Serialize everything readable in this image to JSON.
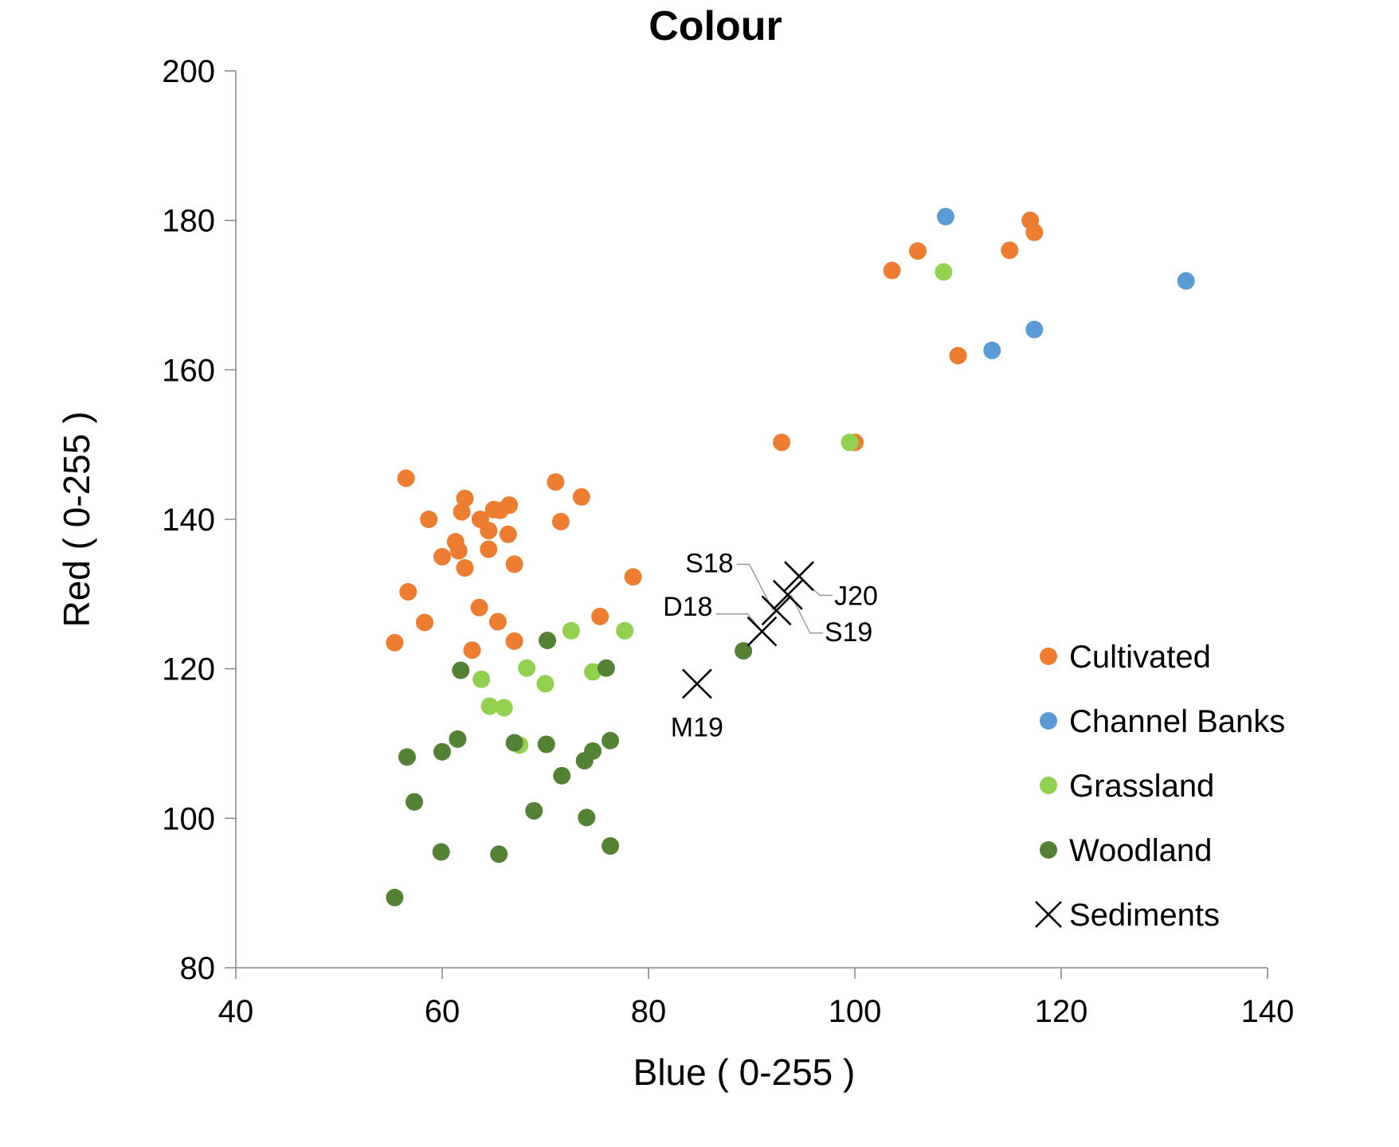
{
  "chart_data": {
    "type": "scatter",
    "title": "Colour",
    "xlabel": "Blue ( 0-255 )",
    "ylabel": "Red ( 0-255 )",
    "xlim": [
      40,
      140
    ],
    "ylim": [
      80,
      200
    ],
    "xticks": [
      40,
      60,
      80,
      100,
      120,
      140
    ],
    "yticks": [
      80,
      100,
      120,
      140,
      160,
      180,
      200
    ],
    "grid": false,
    "legend_position": "bottom-right",
    "series": [
      {
        "name": "Cultivated",
        "color": "#ED7D31",
        "marker": "circle",
        "points": [
          [
            56.5,
            145.5
          ],
          [
            58.7,
            140
          ],
          [
            61.9,
            141
          ],
          [
            62.2,
            142.8
          ],
          [
            63.7,
            140
          ],
          [
            64.5,
            138.5
          ],
          [
            65.0,
            141.3
          ],
          [
            65.6,
            141.2
          ],
          [
            66.5,
            141.9
          ],
          [
            66.4,
            138
          ],
          [
            61.3,
            137
          ],
          [
            61.6,
            135.8
          ],
          [
            60.0,
            135
          ],
          [
            62.2,
            133.5
          ],
          [
            64.5,
            136
          ],
          [
            67.0,
            134
          ],
          [
            71.0,
            145
          ],
          [
            73.5,
            143
          ],
          [
            71.5,
            139.7
          ],
          [
            78.5,
            132.3
          ],
          [
            56.7,
            130.3
          ],
          [
            58.3,
            126.2
          ],
          [
            63.6,
            128.2
          ],
          [
            65.4,
            126.3
          ],
          [
            62.9,
            122.5
          ],
          [
            67.0,
            123.7
          ],
          [
            75.3,
            127
          ],
          [
            55.4,
            123.5
          ],
          [
            92.9,
            150.3
          ],
          [
            100.0,
            150.3
          ],
          [
            110.0,
            161.9
          ],
          [
            103.6,
            173.3
          ],
          [
            106.1,
            175.9
          ],
          [
            117.0,
            180
          ],
          [
            117.4,
            178.4
          ],
          [
            115.0,
            176
          ]
        ]
      },
      {
        "name": "Channel Banks",
        "color": "#5B9BD5",
        "marker": "circle",
        "points": [
          [
            108.8,
            180.5
          ],
          [
            132.1,
            171.9
          ],
          [
            117.4,
            165.4
          ],
          [
            113.3,
            162.6
          ]
        ]
      },
      {
        "name": "Grassland",
        "color": "#92D050",
        "marker": "circle",
        "points": [
          [
            108.6,
            173.1
          ],
          [
            99.5,
            150.3
          ],
          [
            72.5,
            125.1
          ],
          [
            77.7,
            125.1
          ],
          [
            63.8,
            118.6
          ],
          [
            68.2,
            120.1
          ],
          [
            70.0,
            118
          ],
          [
            74.6,
            119.6
          ],
          [
            64.6,
            115
          ],
          [
            66.0,
            114.8
          ],
          [
            67.5,
            109.8
          ]
        ]
      },
      {
        "name": "Woodland",
        "color": "#548235",
        "marker": "circle",
        "points": [
          [
            89.2,
            122.4
          ],
          [
            70.2,
            123.8
          ],
          [
            61.8,
            119.8
          ],
          [
            75.9,
            120.1
          ],
          [
            56.6,
            108.2
          ],
          [
            60.0,
            108.9
          ],
          [
            61.5,
            110.6
          ],
          [
            67.0,
            110.1
          ],
          [
            70.1,
            109.9
          ],
          [
            76.3,
            110.4
          ],
          [
            74.6,
            109
          ],
          [
            73.8,
            107.7
          ],
          [
            71.6,
            105.7
          ],
          [
            57.3,
            102.2
          ],
          [
            68.9,
            101
          ],
          [
            74.0,
            100.1
          ],
          [
            59.9,
            95.5
          ],
          [
            65.5,
            95.2
          ],
          [
            76.3,
            96.3
          ],
          [
            55.4,
            89.4
          ]
        ]
      },
      {
        "name": "Sediments",
        "color": "#000000",
        "marker": "cross",
        "points": [
          [
            84.7,
            118
          ],
          [
            91.0,
            125
          ],
          [
            92.4,
            127.8
          ],
          [
            93.5,
            129.9
          ],
          [
            94.6,
            132.4
          ]
        ]
      }
    ],
    "annotations": [
      {
        "label": "M19",
        "x": 84.7,
        "y": 118
      },
      {
        "label": "D18",
        "x": 91.0,
        "y": 125
      },
      {
        "label": "S18",
        "x": 92.4,
        "y": 127.8
      },
      {
        "label": "S19",
        "x": 93.5,
        "y": 129.9
      },
      {
        "label": "J20",
        "x": 94.6,
        "y": 132.4
      }
    ]
  }
}
